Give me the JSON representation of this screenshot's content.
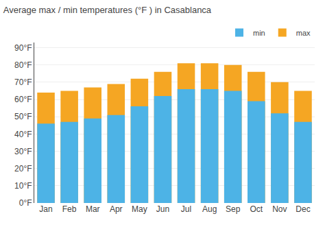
{
  "chart_data": {
    "type": "bar",
    "title": "Average max / min temperatures (°F ) in Casablanca",
    "categories": [
      "Jan",
      "Feb",
      "Mar",
      "Apr",
      "May",
      "Jun",
      "Jul",
      "Aug",
      "Sep",
      "Oct",
      "Nov",
      "Dec"
    ],
    "series": [
      {
        "name": "min",
        "color": "#4db3e6",
        "values": [
          46,
          47,
          49,
          51,
          56,
          62,
          66,
          66,
          65,
          59,
          52,
          47
        ]
      },
      {
        "name": "max",
        "color": "#f5a623",
        "values": [
          64,
          65,
          67,
          69,
          72,
          76,
          81,
          81,
          80,
          76,
          70,
          65
        ]
      }
    ],
    "ylim": [
      0,
      93
    ],
    "yticks": [
      {
        "value": 0,
        "label": "0°F"
      },
      {
        "value": 10,
        "label": "10°F"
      },
      {
        "value": 20,
        "label": "20°F"
      },
      {
        "value": 30,
        "label": "30°F"
      },
      {
        "value": 40,
        "label": "40°F"
      },
      {
        "value": 50,
        "label": "50°F"
      },
      {
        "value": 60,
        "label": "60°F"
      },
      {
        "value": 70,
        "label": "70°F"
      },
      {
        "value": 80,
        "label": "80°F"
      },
      {
        "value": 90,
        "label": "90°F"
      }
    ],
    "grid": true,
    "legend": "upper right"
  }
}
